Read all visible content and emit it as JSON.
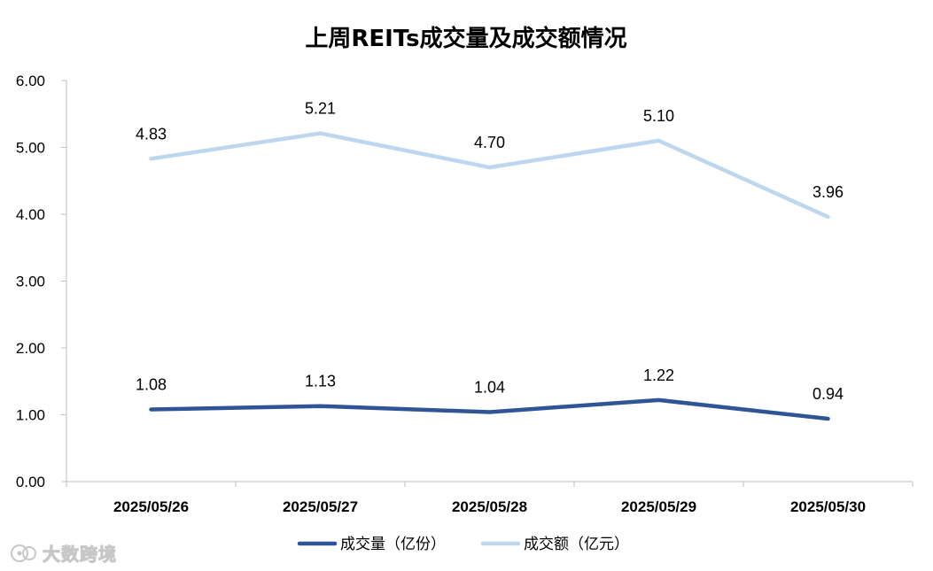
{
  "chart_data": {
    "type": "line",
    "title": "上周REITs成交量及成交额情况",
    "categories": [
      "2025/05/26",
      "2025/05/27",
      "2025/05/28",
      "2025/05/29",
      "2025/05/30"
    ],
    "series": [
      {
        "name": "成交量（亿份）",
        "values": [
          1.08,
          1.13,
          1.04,
          1.22,
          0.94
        ],
        "labels": [
          "1.08",
          "1.13",
          "1.04",
          "1.22",
          "0.94"
        ],
        "color": "#2f5597"
      },
      {
        "name": "成交额（亿元）",
        "values": [
          4.83,
          5.21,
          4.7,
          5.1,
          3.96
        ],
        "labels": [
          "4.83",
          "5.21",
          "4.70",
          "5.10",
          "3.96"
        ],
        "color": "#bdd7ee"
      }
    ],
    "ylim": [
      0,
      6
    ],
    "yticks": [
      "0.00",
      "1.00",
      "2.00",
      "3.00",
      "4.00",
      "5.00",
      "6.00"
    ],
    "grid": false,
    "legend": "bottom"
  },
  "watermark": {
    "text": "大数跨境",
    "icon": "logo-icon"
  }
}
